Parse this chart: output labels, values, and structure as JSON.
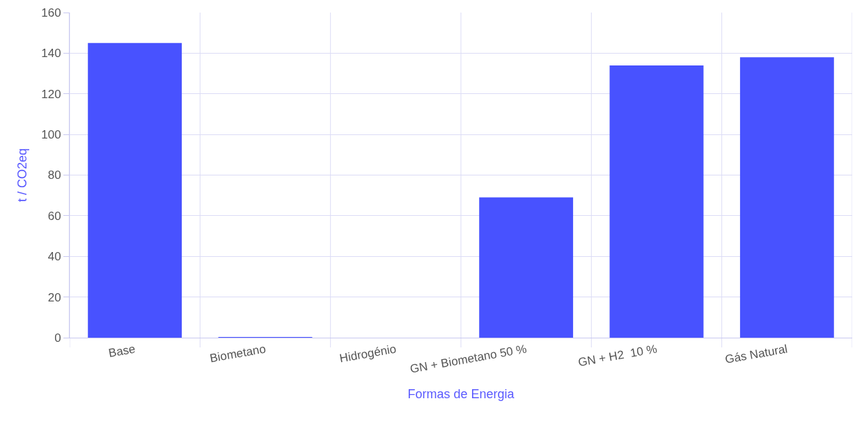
{
  "chart_data": {
    "type": "bar",
    "xlabel": "Formas de Energia",
    "ylabel": "t / CO2eq",
    "categories": [
      "Base",
      "Biometano",
      "Hidrogénio",
      "GN + Biometano 50 %",
      "GN + H2  10 %",
      "Gás Natural"
    ],
    "values": [
      145,
      0.3,
      0,
      69,
      134,
      138
    ],
    "color": "#4852ff",
    "ylim": [
      0,
      160
    ],
    "yticks": [
      0,
      20,
      40,
      60,
      80,
      100,
      120,
      140,
      160
    ],
    "grid": true
  }
}
